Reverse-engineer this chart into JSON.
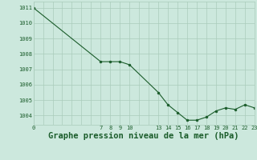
{
  "x": [
    0,
    7,
    8,
    9,
    10,
    13,
    14,
    15,
    16,
    17,
    18,
    19,
    20,
    21,
    22,
    23
  ],
  "y": [
    1011.0,
    1007.5,
    1007.5,
    1007.5,
    1007.3,
    1005.5,
    1004.7,
    1004.2,
    1003.7,
    1003.7,
    1003.9,
    1004.3,
    1004.5,
    1004.4,
    1004.7,
    1004.5
  ],
  "bg_color": "#cce8dd",
  "grid_color_major": "#aaccbb",
  "line_color": "#1a5c2a",
  "marker_color": "#1a5c2a",
  "xlabel": "Graphe pression niveau de la mer (hPa)",
  "xlabel_fontsize": 7.5,
  "ytick_labels": [
    "1004",
    "1005",
    "1006",
    "1007",
    "1008",
    "1009",
    "1010",
    "1011"
  ],
  "ytick_values": [
    1004,
    1005,
    1006,
    1007,
    1008,
    1009,
    1010,
    1011
  ],
  "xtick_labels": [
    "0",
    "7",
    "8",
    "9",
    "10",
    "",
    "13",
    "14",
    "15",
    "16",
    "17",
    "18",
    "19",
    "20",
    "21",
    "22",
    "23"
  ],
  "xtick_values": [
    0,
    7,
    8,
    9,
    10,
    11,
    13,
    14,
    15,
    16,
    17,
    18,
    19,
    20,
    21,
    22,
    23
  ],
  "ylim": [
    1003.4,
    1011.4
  ],
  "xlim": [
    0,
    23
  ],
  "text_color": "#1a5c2a"
}
